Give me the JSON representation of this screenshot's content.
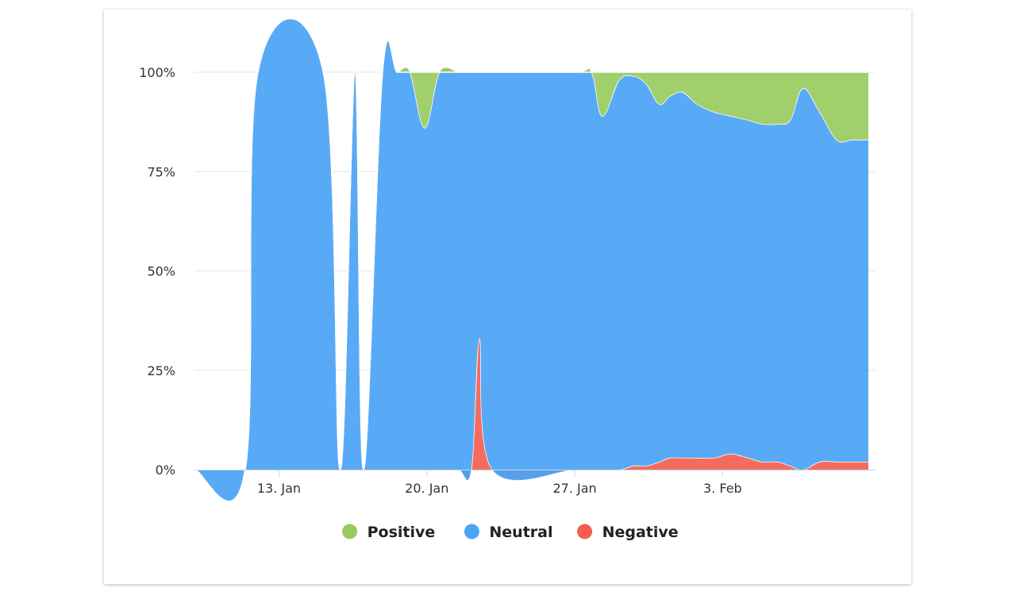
{
  "chart_data": {
    "type": "area",
    "stacking": "percent",
    "ylim": [
      0,
      100
    ],
    "y_ticks": [
      "0%",
      "25%",
      "50%",
      "75%",
      "100%"
    ],
    "x_tick_labels": [
      "13. Jan",
      "20. Jan",
      "27. Jan",
      "3. Feb"
    ],
    "x_tick_days": [
      13,
      20,
      27,
      34
    ],
    "x_range_days": [
      9,
      40.9
    ],
    "legend_position": "bottom-center",
    "grid": true,
    "x_days": [
      9.0,
      11.4,
      12.0,
      15.1,
      15.9,
      16.6,
      17.0,
      17.9,
      18.6,
      19.2,
      19.9,
      20.6,
      21.5,
      22.1,
      22.5,
      23.1,
      27.0,
      27.8,
      28.3,
      29.1,
      29.8,
      30.4,
      31.0,
      31.5,
      32.1,
      32.8,
      33.6,
      34.4,
      35.2,
      35.9,
      36.6,
      37.2,
      37.8,
      38.6,
      39.4,
      40.1,
      40.6,
      40.9
    ],
    "series": [
      {
        "name": "Positive",
        "color": "#98cb5f",
        "values": [
          0,
          0,
          0,
          0,
          0,
          0,
          0,
          0,
          0,
          0,
          14,
          0,
          0,
          0,
          0,
          0,
          0,
          0,
          11,
          2,
          1,
          3,
          8,
          6,
          5,
          8,
          10,
          11,
          12,
          13,
          13,
          12,
          4,
          10,
          17,
          17,
          17,
          17
        ]
      },
      {
        "name": "Neutral",
        "color": "#4ba3f5",
        "values": [
          0,
          0,
          100,
          100,
          0,
          100,
          0,
          100,
          100,
          100,
          86,
          100,
          100,
          100,
          67,
          100,
          100,
          100,
          89,
          98,
          98,
          96,
          90,
          91,
          92,
          89,
          87,
          85,
          85,
          85,
          85,
          87,
          96,
          88,
          81,
          81,
          81,
          81
        ]
      },
      {
        "name": "Negative",
        "color": "#f25f50",
        "values": [
          0,
          0,
          0,
          0,
          0,
          0,
          0,
          0,
          0,
          0,
          0,
          0,
          0,
          0,
          33,
          0,
          0,
          0,
          0,
          0,
          1,
          1,
          2,
          3,
          3,
          3,
          3,
          4,
          3,
          2,
          2,
          1,
          0,
          2,
          2,
          2,
          2,
          2
        ]
      }
    ]
  }
}
